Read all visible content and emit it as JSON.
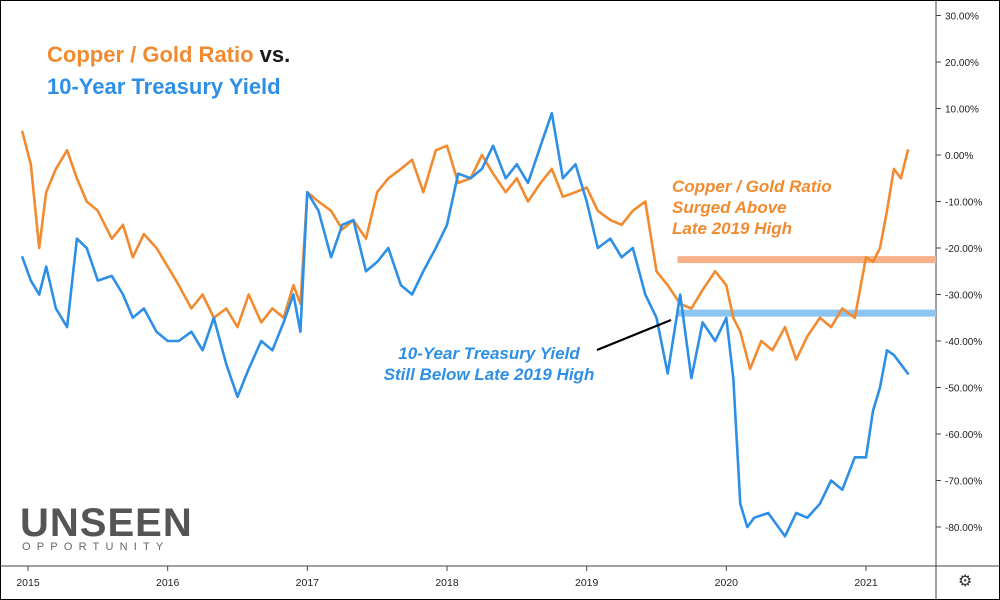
{
  "title": {
    "part1": "Copper / Gold Ratio",
    "vs": " vs.",
    "part2": "10-Year Treasury Yield"
  },
  "annotations": {
    "copper_lines": [
      "Copper / Gold Ratio",
      "Surged Above",
      "Late 2019 High"
    ],
    "yield_lines": [
      "10-Year Treasury Yield",
      "Still Below Late 2019 High"
    ]
  },
  "logo": {
    "main": "UNSEEN",
    "sub": "OPPORTUNITY"
  },
  "settings_icon": "gear-icon",
  "colors": {
    "copper": "#f28b30",
    "yield": "#2e8fe6",
    "copper_level": "#f7b088",
    "yield_level": "#8cc4f2"
  },
  "chart_data": {
    "type": "line",
    "ylim": [
      -90,
      33
    ],
    "xlim": [
      2014.95,
      2021.5
    ],
    "y_ticks": [
      30,
      20,
      10,
      0,
      -10,
      -20,
      -30,
      -40,
      -50,
      -60,
      -70,
      -80
    ],
    "y_tick_labels": [
      "30.00%",
      "20.00%",
      "10.00%",
      "0.00%",
      "-10.00%",
      "-20.00%",
      "-30.00%",
      "-40.00%",
      "-50.00%",
      "-60.00%",
      "-70.00%",
      "-80.00%"
    ],
    "x_ticks": [
      2015,
      2016,
      2017,
      2018,
      2019,
      2020,
      2021
    ],
    "x_tick_labels": [
      "2015",
      "2016",
      "2017",
      "2018",
      "2019",
      "2020",
      "2021"
    ],
    "grid": false,
    "reference_lines": [
      {
        "series": "Copper / Gold Ratio",
        "y": -22.5,
        "x_start": 2019.65,
        "x_end": 2021.5
      },
      {
        "series": "10-Year Treasury Yield",
        "y": -34,
        "x_start": 2019.65,
        "x_end": 2021.5
      }
    ],
    "series": [
      {
        "name": "Copper / Gold Ratio",
        "x": [
          2014.96,
          2015.02,
          2015.08,
          2015.13,
          2015.2,
          2015.28,
          2015.35,
          2015.42,
          2015.5,
          2015.6,
          2015.68,
          2015.75,
          2015.83,
          2015.92,
          2016.0,
          2016.08,
          2016.17,
          2016.25,
          2016.33,
          2016.42,
          2016.5,
          2016.58,
          2016.67,
          2016.75,
          2016.83,
          2016.9,
          2016.95,
          2017.0,
          2017.08,
          2017.17,
          2017.25,
          2017.33,
          2017.42,
          2017.5,
          2017.58,
          2017.67,
          2017.75,
          2017.83,
          2017.92,
          2018.0,
          2018.08,
          2018.17,
          2018.25,
          2018.33,
          2018.42,
          2018.5,
          2018.58,
          2018.67,
          2018.75,
          2018.83,
          2018.92,
          2019.0,
          2019.08,
          2019.17,
          2019.25,
          2019.33,
          2019.42,
          2019.5,
          2019.58,
          2019.67,
          2019.75,
          2019.83,
          2019.92,
          2020.0,
          2020.05,
          2020.1,
          2020.17,
          2020.25,
          2020.33,
          2020.42,
          2020.5,
          2020.58,
          2020.67,
          2020.75,
          2020.83,
          2020.92,
          2021.0,
          2021.05,
          2021.1,
          2021.15,
          2021.2,
          2021.25,
          2021.3
        ],
        "values": [
          5,
          -2,
          -20,
          -8,
          -3,
          1,
          -5,
          -10,
          -12,
          -18,
          -15,
          -22,
          -17,
          -20,
          -24,
          -28,
          -33,
          -30,
          -35,
          -33,
          -37,
          -30,
          -36,
          -33,
          -35,
          -28,
          -32,
          -8,
          -10,
          -12,
          -16,
          -14,
          -18,
          -8,
          -5,
          -3,
          -1,
          -8,
          1,
          2,
          -6,
          -5,
          0,
          -4,
          -8,
          -5,
          -10,
          -6,
          -3,
          -9,
          -8,
          -7,
          -12,
          -14,
          -15,
          -12,
          -10,
          -25,
          -28,
          -32,
          -33,
          -29,
          -25,
          -28,
          -35,
          -38,
          -46,
          -40,
          -42,
          -37,
          -44,
          -39,
          -35,
          -37,
          -33,
          -35,
          -22,
          -23,
          -20,
          -12,
          -3,
          -5,
          1
        ]
      },
      {
        "name": "10-Year Treasury Yield",
        "x": [
          2014.96,
          2015.02,
          2015.08,
          2015.13,
          2015.2,
          2015.28,
          2015.35,
          2015.42,
          2015.5,
          2015.6,
          2015.68,
          2015.75,
          2015.83,
          2015.92,
          2016.0,
          2016.08,
          2016.17,
          2016.25,
          2016.33,
          2016.42,
          2016.5,
          2016.58,
          2016.67,
          2016.75,
          2016.83,
          2016.9,
          2016.95,
          2017.0,
          2017.08,
          2017.17,
          2017.25,
          2017.33,
          2017.42,
          2017.5,
          2017.58,
          2017.67,
          2017.75,
          2017.83,
          2017.92,
          2018.0,
          2018.08,
          2018.17,
          2018.25,
          2018.33,
          2018.42,
          2018.5,
          2018.58,
          2018.67,
          2018.75,
          2018.83,
          2018.92,
          2019.0,
          2019.08,
          2019.17,
          2019.25,
          2019.33,
          2019.42,
          2019.5,
          2019.58,
          2019.67,
          2019.75,
          2019.83,
          2019.92,
          2020.0,
          2020.05,
          2020.1,
          2020.15,
          2020.2,
          2020.3,
          2020.42,
          2020.5,
          2020.58,
          2020.67,
          2020.75,
          2020.83,
          2020.92,
          2021.0,
          2021.05,
          2021.1,
          2021.15,
          2021.2,
          2021.25,
          2021.3
        ],
        "values": [
          -22,
          -27,
          -30,
          -24,
          -33,
          -37,
          -18,
          -20,
          -27,
          -26,
          -30,
          -35,
          -33,
          -38,
          -40,
          -40,
          -38,
          -42,
          -35,
          -45,
          -52,
          -46,
          -40,
          -42,
          -36,
          -30,
          -38,
          -8,
          -12,
          -22,
          -15,
          -14,
          -25,
          -23,
          -20,
          -28,
          -30,
          -25,
          -20,
          -15,
          -4,
          -5,
          -3,
          2,
          -5,
          -2,
          -6,
          2,
          9,
          -5,
          -2,
          -10,
          -20,
          -18,
          -22,
          -20,
          -30,
          -35,
          -47,
          -30,
          -48,
          -36,
          -40,
          -35,
          -48,
          -75,
          -80,
          -78,
          -77,
          -82,
          -77,
          -78,
          -75,
          -70,
          -72,
          -65,
          -65,
          -55,
          -50,
          -42,
          -43,
          -45,
          -47
        ]
      }
    ]
  }
}
